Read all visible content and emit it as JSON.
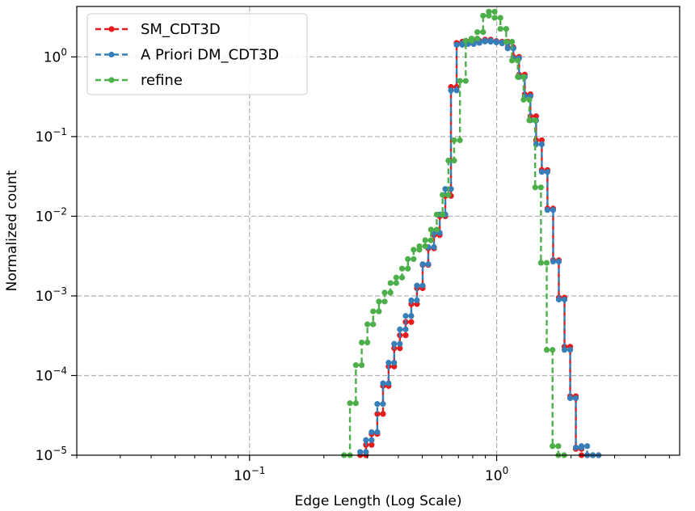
{
  "chart_data": {
    "type": "line",
    "xscale": "log",
    "yscale": "log",
    "xlim": [
      0.02,
      5.5
    ],
    "ylim": [
      1e-05,
      4.3
    ],
    "xlabel": "Edge Length (Log Scale)",
    "ylabel": "Normalized count",
    "grid": true,
    "legend_position": "top-left",
    "x_ticks": [
      {
        "value": 0.1,
        "base": "10",
        "exp": "−1"
      },
      {
        "value": 1,
        "base": "10",
        "exp": "0"
      }
    ],
    "y_ticks": [
      {
        "value": 1e-05,
        "base": "10",
        "exp": "−5"
      },
      {
        "value": 0.0001,
        "base": "10",
        "exp": "−4"
      },
      {
        "value": 0.001,
        "base": "10",
        "exp": "−3"
      },
      {
        "value": 0.01,
        "base": "10",
        "exp": "−2"
      },
      {
        "value": 0.1,
        "base": "10",
        "exp": "−1"
      },
      {
        "value": 1,
        "base": "10",
        "exp": "0"
      }
    ],
    "series": [
      {
        "name": "SM_CDT3D",
        "color": "#e41a1c",
        "linestyle": "dashed",
        "x": [
          0.288,
          0.304,
          0.32,
          0.338,
          0.356,
          0.375,
          0.395,
          0.417,
          0.44,
          0.463,
          0.489,
          0.515,
          0.543,
          0.573,
          0.604,
          0.636,
          0.671,
          0.707,
          0.746,
          0.786,
          0.829,
          0.874,
          0.921,
          0.971,
          1.024,
          1.08,
          1.138,
          1.2,
          1.265,
          1.334,
          1.406,
          1.483,
          1.563,
          1.648,
          1.738,
          1.832,
          1.932,
          2.037,
          2.147,
          2.264,
          2.387,
          2.516
        ],
        "y": [
          1e-05,
          1.35e-05,
          1.85e-05,
          3.3e-05,
          7.4e-05,
          0.00013,
          0.00022,
          0.00032,
          0.00047,
          0.00079,
          0.00125,
          0.00245,
          0.00395,
          0.0058,
          0.01,
          0.018,
          0.42,
          1.5,
          1.55,
          1.52,
          1.55,
          1.6,
          1.65,
          1.58,
          1.55,
          1.55,
          1.32,
          1.0,
          0.6,
          0.34,
          0.18,
          0.09,
          0.038,
          0.0125,
          0.0028,
          0.00095,
          0.00023,
          5.5e-05,
          1.2e-05,
          1e-05,
          1e-05,
          1e-05
        ]
      },
      {
        "name": "A Priori DM_CDT3D",
        "color": "#377eb8",
        "linestyle": "dashed",
        "x": [
          0.288,
          0.304,
          0.32,
          0.338,
          0.356,
          0.375,
          0.395,
          0.417,
          0.44,
          0.463,
          0.489,
          0.515,
          0.543,
          0.573,
          0.604,
          0.636,
          0.671,
          0.707,
          0.746,
          0.786,
          0.829,
          0.874,
          0.921,
          0.971,
          1.024,
          1.08,
          1.138,
          1.2,
          1.265,
          1.334,
          1.406,
          1.483,
          1.563,
          1.648,
          1.738,
          1.832,
          1.932,
          2.037,
          2.147,
          2.264,
          2.387,
          2.516
        ],
        "y": [
          1.1e-05,
          1.55e-05,
          1.95e-05,
          4.4e-05,
          8e-05,
          0.000145,
          0.00025,
          0.00038,
          0.00056,
          0.00088,
          0.00135,
          0.0025,
          0.0041,
          0.0062,
          0.0105,
          0.022,
          0.38,
          1.42,
          1.48,
          1.45,
          1.5,
          1.56,
          1.6,
          1.55,
          1.52,
          1.48,
          1.28,
          0.96,
          0.56,
          0.32,
          0.16,
          0.08,
          0.036,
          0.012,
          0.0027,
          0.0009,
          0.00021,
          5.2e-05,
          1.25e-05,
          1.3e-05,
          1e-05,
          1e-05
        ]
      },
      {
        "name": "refine",
        "color": "#4daf4a",
        "linestyle": "dashed",
        "x": [
          0.248,
          0.262,
          0.277,
          0.292,
          0.308,
          0.325,
          0.343,
          0.362,
          0.382,
          0.403,
          0.426,
          0.449,
          0.474,
          0.5,
          0.528,
          0.557,
          0.588,
          0.621,
          0.655,
          0.691,
          0.73,
          0.77,
          0.813,
          0.858,
          0.905,
          0.955,
          1.008,
          1.064,
          1.123,
          1.185,
          1.251,
          1.32,
          1.393,
          1.471,
          1.552,
          1.638,
          1.729,
          1.825
        ],
        "y": [
          1e-05,
          4.5e-05,
          0.000135,
          0.00026,
          0.00044,
          0.00064,
          0.00085,
          0.0011,
          0.00145,
          0.0017,
          0.0022,
          0.0029,
          0.0038,
          0.0042,
          0.005,
          0.0068,
          0.0105,
          0.0185,
          0.05,
          0.09,
          0.5,
          1.6,
          1.7,
          2.05,
          3.3,
          3.7,
          3.1,
          2.25,
          1.55,
          0.9,
          0.56,
          0.29,
          0.16,
          0.023,
          0.0026,
          0.00021,
          1.3e-05,
          1e-05
        ]
      }
    ]
  }
}
